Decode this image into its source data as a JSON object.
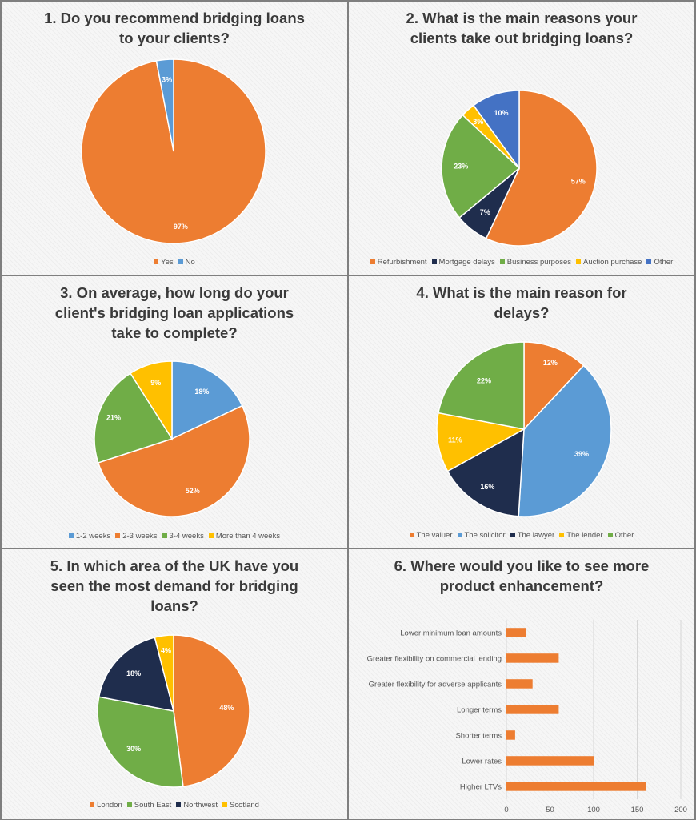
{
  "colors": {
    "orange": "#ed7d31",
    "blue": "#5b9bd5",
    "navy": "#1f2d4d",
    "green": "#70ad47",
    "yellow": "#ffc000",
    "royal": "#4472c4"
  },
  "chart_data": [
    {
      "type": "pie",
      "title": [
        "1. Do you recommend bridging loans",
        "to your clients?"
      ],
      "slices": [
        {
          "label": "Yes",
          "value": 97,
          "display": "97%",
          "color": "#ed7d31"
        },
        {
          "label": "No",
          "value": 3,
          "display": "3%",
          "color": "#5b9bd5"
        }
      ],
      "legend": "bottom"
    },
    {
      "type": "pie",
      "title": [
        "2. What is the main reasons your",
        "clients take out bridging loans?"
      ],
      "slices": [
        {
          "label": "Refurbishment",
          "value": 57,
          "display": "57%",
          "color": "#ed7d31"
        },
        {
          "label": "Mortgage delays",
          "value": 7,
          "display": "7%",
          "color": "#1f2d4d"
        },
        {
          "label": "Business purposes",
          "value": 23,
          "display": "23%",
          "color": "#70ad47"
        },
        {
          "label": "Auction purchase",
          "value": 3,
          "display": "3%",
          "color": "#ffc000"
        },
        {
          "label": "Other",
          "value": 10,
          "display": "10%",
          "color": "#4472c4"
        }
      ],
      "legend": "bottom"
    },
    {
      "type": "pie",
      "title": [
        "3. On average, how long do your",
        "client's bridging loan applications",
        "take to complete?"
      ],
      "slices": [
        {
          "label": "1-2 weeks",
          "value": 18,
          "display": "18%",
          "color": "#5b9bd5"
        },
        {
          "label": "2-3 weeks",
          "value": 52,
          "display": "52%",
          "color": "#ed7d31"
        },
        {
          "label": "3-4 weeks",
          "value": 21,
          "display": "21%",
          "color": "#70ad47"
        },
        {
          "label": "More than 4 weeks",
          "value": 9,
          "display": "9%",
          "color": "#ffc000"
        }
      ],
      "legend": "bottom"
    },
    {
      "type": "pie",
      "title": [
        "4. What is the main reason for",
        "delays?"
      ],
      "slices": [
        {
          "label": "The valuer",
          "value": 12,
          "display": "12%",
          "color": "#ed7d31"
        },
        {
          "label": "The solicitor",
          "value": 39,
          "display": "39%",
          "color": "#5b9bd5"
        },
        {
          "label": "The lawyer",
          "value": 16,
          "display": "16%",
          "color": "#1f2d4d"
        },
        {
          "label": "The lender",
          "value": 11,
          "display": "11%",
          "color": "#ffc000"
        },
        {
          "label": "Other",
          "value": 22,
          "display": "22%",
          "color": "#70ad47"
        }
      ],
      "legend": "bottom"
    },
    {
      "type": "pie",
      "title": [
        "5. In which area of the UK have you",
        "seen the most demand for bridging",
        "loans?"
      ],
      "slices": [
        {
          "label": "London",
          "value": 48,
          "display": "48%",
          "color": "#ed7d31"
        },
        {
          "label": "South East",
          "value": 30,
          "display": "30%",
          "color": "#70ad47"
        },
        {
          "label": "Northwest",
          "value": 18,
          "display": "18%",
          "color": "#1f2d4d"
        },
        {
          "label": "Scotland",
          "value": 4,
          "display": "4%",
          "color": "#ffc000"
        }
      ],
      "legend": "bottom"
    },
    {
      "type": "bar",
      "orientation": "horizontal",
      "title": [
        "6. Where would you like to see more",
        "product enhancement?"
      ],
      "categories": [
        "Lower minimum loan amounts",
        "Greater flexibility on commercial lending",
        "Greater flexibility for adverse applicants",
        "Longer terms",
        "Shorter terms",
        "Lower rates",
        "Higher LTVs"
      ],
      "values": [
        22,
        60,
        30,
        60,
        10,
        100,
        160
      ],
      "xlim": [
        0,
        200
      ],
      "xticks": [
        "0",
        "50",
        "100",
        "150",
        "200"
      ],
      "color": "#ed7d31",
      "grid": true
    }
  ]
}
